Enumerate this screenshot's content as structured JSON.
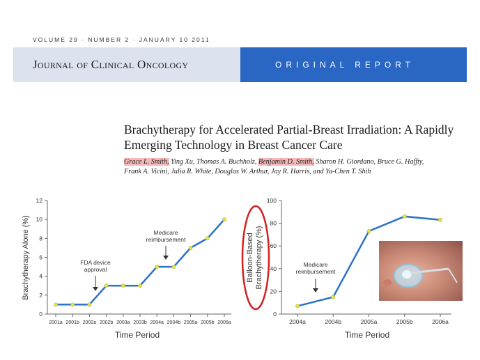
{
  "header": {
    "volume_line": "VOLUME 29 · NUMBER 2 · JANUARY 10 2011",
    "journal_name": "Journal of Clinical Oncology",
    "section": "ORIGINAL REPORT",
    "banner_left_color": "#dce3ef",
    "banner_right_color": "#2a66c4"
  },
  "article": {
    "title": "Brachytherapy for Accelerated Partial-Breast Irradiation: A Rapidly Emerging Technology in Breast Cancer Care",
    "authors_line1": {
      "a1": "Grace L. Smith,",
      "a2": " Ying Xu, Thomas A. Buchholz, ",
      "a3": "Benjamin D. Smith,",
      "a4": " Sharon H. Giordano, Bruce G. Haffty,"
    },
    "authors_line2": "Frank A. Vicini, Julia R. White, Douglas W. Arthur, Jay R. Harris, and Ya-Chen T. Shih",
    "highlight_color": "#f4b8b8"
  },
  "chart_data": [
    {
      "type": "line",
      "ylabel": "Brachytherapy Alone (%)",
      "xlabel": "Time Period",
      "categories": [
        "2001a",
        "2001b",
        "2002a",
        "2002b",
        "2003a",
        "2003b",
        "2004a",
        "2004b",
        "2005a",
        "2005b",
        "2006a"
      ],
      "values": [
        1,
        1,
        1,
        3,
        3,
        3,
        5,
        5,
        7,
        8,
        10
      ],
      "ylim": [
        0,
        12
      ],
      "yticks": [
        "0",
        "2",
        "4",
        "6",
        "8",
        "10",
        "12"
      ],
      "annotations": [
        {
          "text_line1": "FDA device",
          "text_line2": "approval",
          "at": "2002a"
        },
        {
          "text_line1": "Medicare",
          "text_line2": "reimbursement",
          "at": "2004a"
        }
      ],
      "line_color": "#2a72c8",
      "marker_color": "#e8e24a"
    },
    {
      "type": "line",
      "ylabel_line1": "Balloon-Based",
      "ylabel_line2": "Brachytherapy (%)",
      "xlabel": "Time Period",
      "categories": [
        "2004a",
        "2004b",
        "2005a",
        "2005b",
        "2006a"
      ],
      "values": [
        7,
        15,
        73,
        86,
        83
      ],
      "ylim": [
        0,
        100
      ],
      "yticks": [
        "0",
        "20",
        "40",
        "60",
        "80",
        "100"
      ],
      "annotations": [
        {
          "text_line1": "Medicare",
          "text_line2": "reimbursement",
          "at": "2004a"
        }
      ],
      "line_color": "#2a72c8",
      "marker_color": "#e8e24a",
      "circle_color": "#d42020"
    }
  ]
}
